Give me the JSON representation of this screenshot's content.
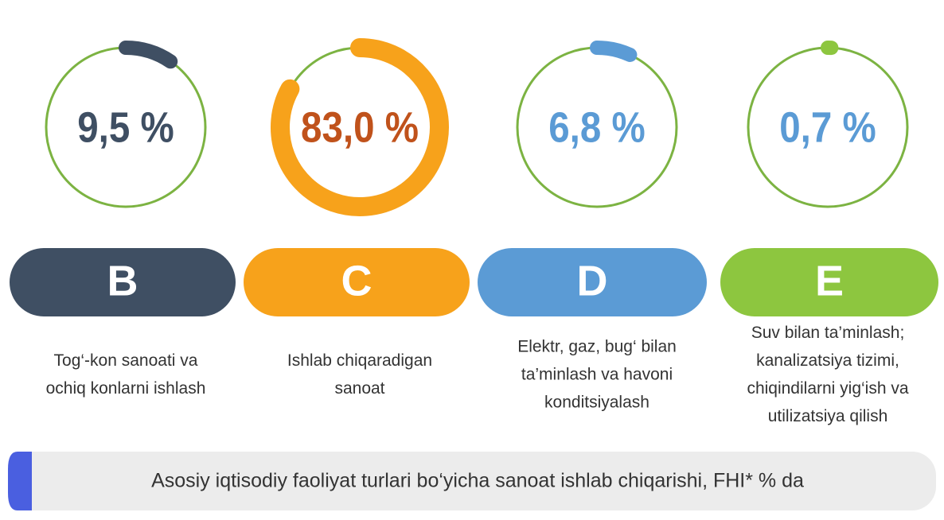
{
  "chart_data": {
    "type": "gauge",
    "categories": [
      "B",
      "C",
      "D",
      "E"
    ],
    "values": [
      9.5,
      83.0,
      6.8,
      0.7
    ],
    "value_labels": [
      "9,5 %",
      "83,0 %",
      "6,8 %",
      "0,7 %"
    ],
    "colors": [
      "#3f4f63",
      "#f7a21b",
      "#5b9bd5",
      "#8dc63f"
    ],
    "label_colors": [
      "#3f4f63",
      "#c0521b",
      "#5b9bd5",
      "#5b9bd5"
    ],
    "ring_color": "#7cb342",
    "descriptions": [
      [
        "Tog‘-kon sanoati va",
        "ochiq konlarni ishlash"
      ],
      [
        "Ishlab chiqaradigan",
        "sanoat"
      ],
      [
        "Elektr, gaz, bug‘ bilan",
        "ta’minlash va havoni",
        "konditsiyalash"
      ],
      [
        "Suv bilan ta’minlash;",
        "kanalizatsiya tizimi,",
        "chiqindilarni yig‘ish va",
        "utilizatsiya qilish"
      ]
    ],
    "title": "Asosiy iqtisodiy faoliyat turlari bo‘yicha sanoat ishlab chiqarishi, FHI* % da"
  }
}
